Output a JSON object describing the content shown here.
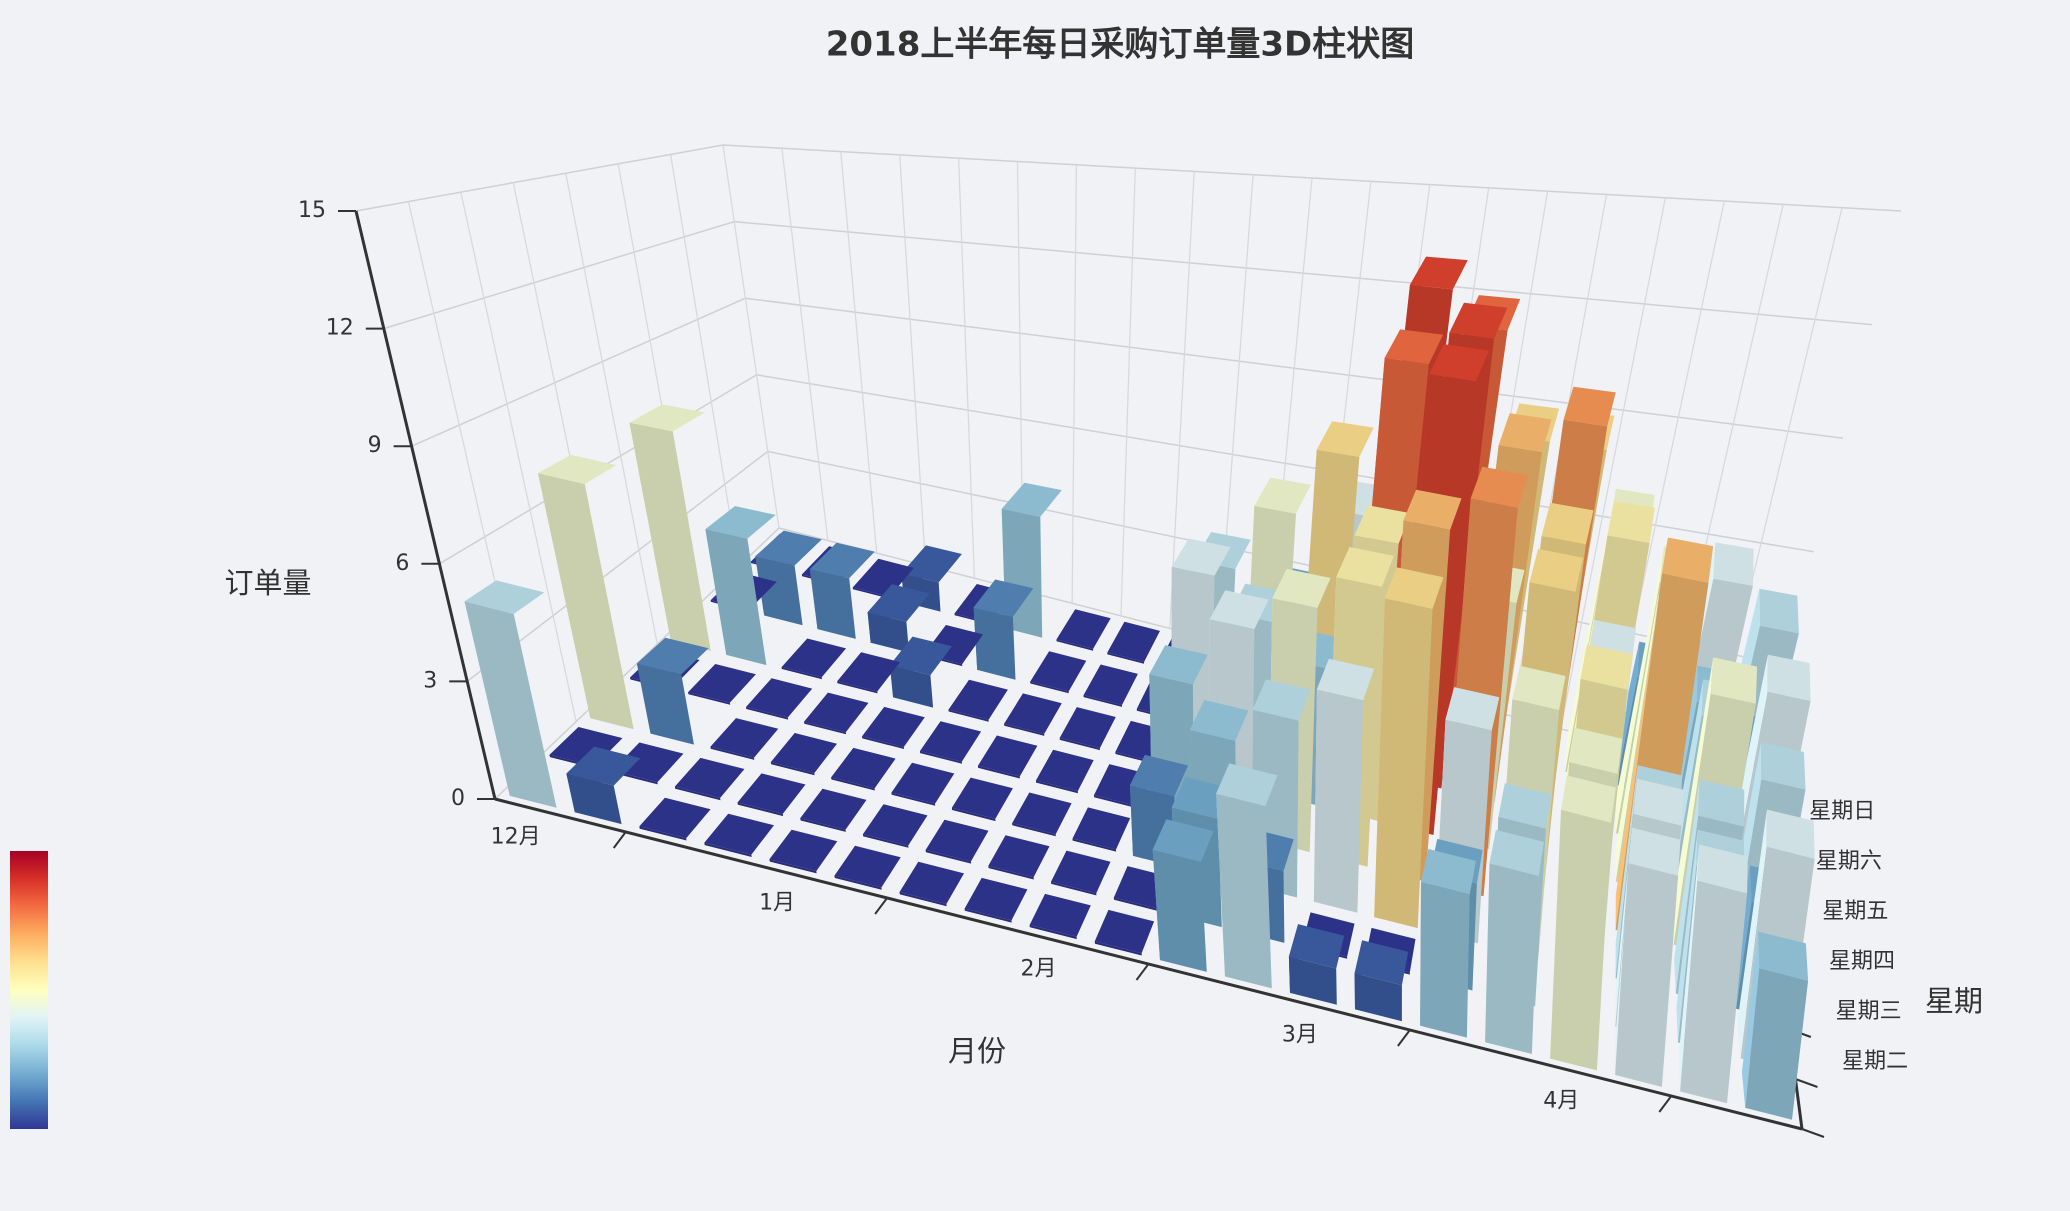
{
  "chart_data": {
    "type": "bar3d",
    "title": "2018上半年每日采购订单量3D柱状图",
    "x_axis_label": "月份",
    "y_axis_label": "星期",
    "z_axis_label": "订单量",
    "x_categories": [
      "12月",
      null,
      null,
      null,
      "1月",
      null,
      null,
      null,
      "2月",
      null,
      null,
      null,
      "3月",
      null,
      null,
      null,
      "4月",
      null,
      null,
      null
    ],
    "y_categories": [
      null,
      "星期二",
      "星期三",
      "星期四",
      "星期五",
      "星期六",
      "星期日"
    ],
    "values": [
      [
        5,
        1,
        0,
        0,
        0,
        0,
        0,
        0,
        0,
        0,
        3,
        5,
        1,
        1,
        4,
        5,
        7,
        6,
        6,
        4
      ],
      [
        0,
        0,
        0,
        0,
        0,
        0,
        0,
        0,
        0,
        0,
        3,
        2,
        0,
        0,
        3,
        5,
        7,
        6,
        5,
        6
      ],
      [
        7,
        2,
        0,
        0,
        0,
        0,
        0,
        0,
        0,
        2,
        4,
        5,
        6,
        9,
        6,
        7,
        8,
        5,
        5,
        3
      ],
      [
        0,
        0,
        0,
        0,
        0,
        0,
        0,
        0,
        0,
        4,
        6,
        7,
        8,
        10,
        11,
        9,
        6,
        10,
        7,
        5
      ],
      [
        7,
        4,
        0,
        0,
        1,
        0,
        0,
        0,
        0,
        6,
        5,
        4,
        8,
        13,
        7,
        9,
        6,
        7,
        5,
        6
      ],
      [
        0,
        2,
        2,
        1,
        0,
        2,
        0,
        0,
        0,
        5,
        7,
        9,
        12,
        13,
        10,
        11,
        8,
        7,
        4,
        3
      ],
      [
        0,
        0,
        0,
        1,
        0,
        4,
        0,
        0,
        0,
        1,
        3,
        6,
        13,
        12,
        9,
        9,
        7,
        3,
        6,
        5
      ]
    ],
    "zlim": [
      0,
      15
    ],
    "zticks": [
      0,
      3,
      6,
      9,
      12,
      15
    ],
    "grid": true,
    "visual_map_colors": [
      "#313695",
      "#4575b4",
      "#74add1",
      "#abd9e9",
      "#e0f3f8",
      "#ffffbf",
      "#fee090",
      "#fdae61",
      "#f46d43",
      "#d73027",
      "#a50026"
    ]
  }
}
